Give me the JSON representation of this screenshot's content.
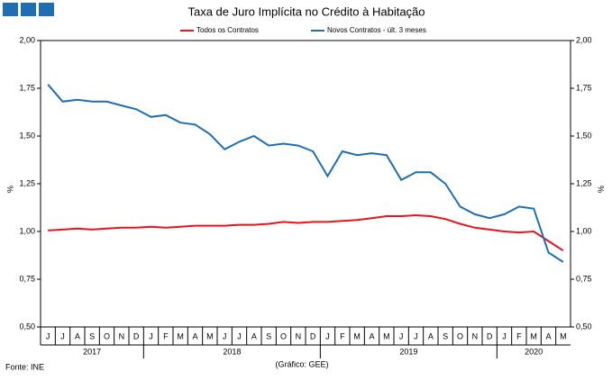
{
  "chart_data": {
    "type": "line",
    "title": "Taxa de Juro Implícita no Crédito à Habitação",
    "categories": [
      "J",
      "J",
      "A",
      "S",
      "O",
      "N",
      "D",
      "J",
      "F",
      "M",
      "A",
      "M",
      "J",
      "J",
      "A",
      "S",
      "O",
      "N",
      "D",
      "J",
      "F",
      "M",
      "A",
      "M",
      "J",
      "J",
      "A",
      "S",
      "O",
      "N",
      "D",
      "J",
      "F",
      "M",
      "A",
      "M"
    ],
    "years": [
      "2017",
      "2018",
      "2019",
      "2020"
    ],
    "series": [
      {
        "name": "Todos os Contratos",
        "color": "#e8141b",
        "values": [
          1.005,
          1.01,
          1.015,
          1.01,
          1.015,
          1.02,
          1.02,
          1.025,
          1.02,
          1.025,
          1.03,
          1.03,
          1.03,
          1.035,
          1.035,
          1.04,
          1.05,
          1.045,
          1.05,
          1.05,
          1.055,
          1.06,
          1.07,
          1.08,
          1.08,
          1.085,
          1.08,
          1.065,
          1.04,
          1.02,
          1.01,
          1.0,
          0.995,
          1.0,
          0.95,
          0.9
        ]
      },
      {
        "name": "Novos Contratos - últ. 3 meses",
        "color": "#1f6eb4",
        "values": [
          1.77,
          1.68,
          1.69,
          1.68,
          1.68,
          1.66,
          1.64,
          1.6,
          1.61,
          1.57,
          1.56,
          1.51,
          1.43,
          1.47,
          1.5,
          1.45,
          1.46,
          1.45,
          1.42,
          1.29,
          1.42,
          1.4,
          1.41,
          1.4,
          1.27,
          1.31,
          1.31,
          1.25,
          1.13,
          1.09,
          1.07,
          1.09,
          1.13,
          1.12,
          0.89,
          0.84
        ]
      }
    ],
    "ylim": [
      0.5,
      2.0
    ],
    "yticks": [
      {
        "value": 0.5,
        "label": "0,50"
      },
      {
        "value": 0.75,
        "label": "0,75"
      },
      {
        "value": 1.0,
        "label": "1,00"
      },
      {
        "value": 1.25,
        "label": "1,25"
      },
      {
        "value": 1.5,
        "label": "1,50"
      },
      {
        "value": 1.75,
        "label": "1,75"
      },
      {
        "value": 2.0,
        "label": "2,00"
      }
    ],
    "y2lim": [
      0.5,
      2.0
    ],
    "y2ticks": [
      {
        "value": 0.5,
        "label": "0,50"
      },
      {
        "value": 0.75,
        "label": "0,75"
      },
      {
        "value": 1.0,
        "label": "1,00"
      },
      {
        "value": 1.25,
        "label": "1,25"
      },
      {
        "value": 1.5,
        "label": "1,50"
      },
      {
        "value": 1.75,
        "label": "1,75"
      },
      {
        "value": 2.0,
        "label": "2,00"
      }
    ],
    "ylabel": "%",
    "y2label": "%",
    "source": "Fonte: INE",
    "credit": "(Gráfico: GEE)"
  }
}
